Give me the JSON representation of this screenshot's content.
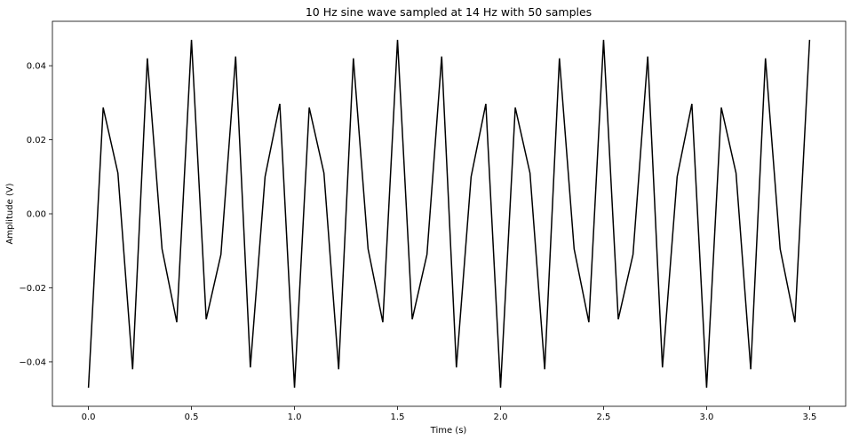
{
  "chart_data": {
    "type": "line",
    "title": "10 Hz sine wave sampled at 14 Hz with 50 samples",
    "xlabel": "Time (s)",
    "ylabel": "Amplitude (V)",
    "xlim": [
      -0.175,
      3.675
    ],
    "ylim": [
      -0.052,
      0.052
    ],
    "xticks": [
      0.0,
      0.5,
      1.0,
      1.5,
      2.0,
      2.5,
      3.0,
      3.5
    ],
    "xtick_labels": [
      "0.0",
      "0.5",
      "1.0",
      "1.5",
      "2.0",
      "2.5",
      "3.0",
      "3.5"
    ],
    "yticks": [
      -0.04,
      -0.02,
      0.0,
      0.02,
      0.04
    ],
    "ytick_labels": [
      "−0.04",
      "−0.02",
      "0.00",
      "0.02",
      "0.04"
    ],
    "grid": false,
    "line_color": "#000000",
    "series": [
      {
        "x": [
          0.0,
          0.0714,
          0.1429,
          0.2143,
          0.2857,
          0.3571,
          0.4286,
          0.5,
          0.5714,
          0.6429,
          0.7143,
          0.7857,
          0.8571,
          0.9286,
          1.0,
          1.0714,
          1.1429,
          1.2143,
          1.2857,
          1.3571,
          1.4286,
          1.5,
          1.5714,
          1.6429,
          1.7143,
          1.7857,
          1.8571,
          1.9286,
          2.0,
          2.0714,
          2.1429,
          2.2143,
          2.2857,
          2.3571,
          2.4286,
          2.5,
          2.5714,
          2.6429,
          2.7143,
          2.7857,
          2.8571,
          2.9286,
          3.0,
          3.0714,
          3.1429,
          3.2143,
          3.2857,
          3.3571,
          3.4286,
          3.5
        ],
        "y": [
          -0.047,
          0.0287,
          0.011,
          -0.042,
          0.042,
          -0.0095,
          -0.0293,
          0.047,
          -0.0285,
          -0.011,
          0.0425,
          -0.0415,
          0.01,
          0.0297,
          -0.047,
          0.0287,
          0.011,
          -0.042,
          0.042,
          -0.0095,
          -0.0293,
          0.047,
          -0.0285,
          -0.011,
          0.0425,
          -0.0415,
          0.01,
          0.0297,
          -0.047,
          0.0287,
          0.011,
          -0.042,
          0.042,
          -0.0095,
          -0.0293,
          0.047,
          -0.0285,
          -0.011,
          0.0425,
          -0.0415,
          0.01,
          0.0297,
          -0.047,
          0.0287,
          0.011,
          -0.042,
          0.042,
          -0.0095,
          -0.0293,
          0.047
        ]
      }
    ]
  }
}
